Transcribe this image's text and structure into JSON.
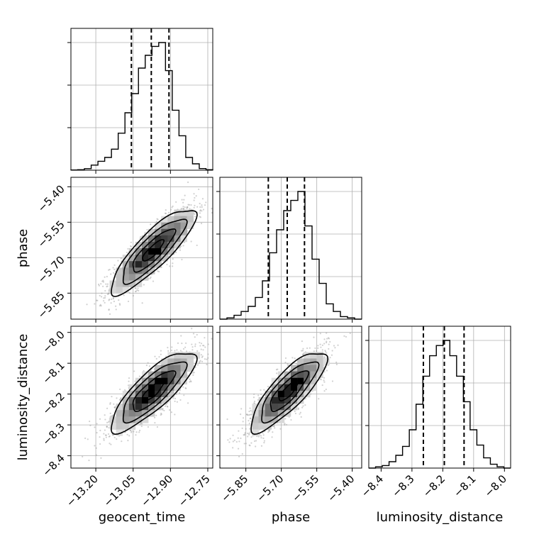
{
  "chart_data": {
    "type": "corner",
    "parameters": [
      {
        "name": "geocent_time",
        "label": "geocent_time",
        "range": [
          -13.3,
          -12.73
        ],
        "ticks": [
          -13.2,
          -13.05,
          -12.9,
          -12.75
        ],
        "tick_labels": [
          "−13.20",
          "−13.05",
          "−12.90",
          "−12.75"
        ],
        "quantiles": [
          -13.057,
          -12.977,
          -12.906
        ],
        "histogram": [
          0.002,
          0.004,
          0.012,
          0.04,
          0.07,
          0.1,
          0.165,
          0.29,
          0.45,
          0.6,
          0.8,
          0.9,
          0.97,
          1.0,
          0.78,
          0.47,
          0.27,
          0.1,
          0.05,
          0.013,
          0.004
        ]
      },
      {
        "name": "phase",
        "label": "phase",
        "range": [
          -5.96,
          -5.36
        ],
        "ticks": [
          -5.85,
          -5.7,
          -5.55,
          -5.4
        ],
        "tick_labels": [
          "−5.85",
          "−5.70",
          "−5.55",
          "−5.40"
        ],
        "quantiles": [
          -5.755,
          -5.675,
          -5.602
        ],
        "histogram": [
          0.0,
          0.01,
          0.03,
          0.06,
          0.1,
          0.17,
          0.3,
          0.52,
          0.7,
          0.85,
          0.93,
          1.0,
          0.73,
          0.47,
          0.28,
          0.12,
          0.06,
          0.02,
          0.01,
          0.0
        ]
      },
      {
        "name": "luminosity_distance",
        "label": "luminosity_distance",
        "range": [
          -8.44,
          -7.98
        ],
        "ticks": [
          -8.4,
          -8.3,
          -8.2,
          -8.1,
          -8.0
        ],
        "tick_labels": [
          "−8.4",
          "−8.3",
          "−8.2",
          "−8.1",
          "−8.0"
        ],
        "quantiles": [
          -8.263,
          -8.195,
          -8.131
        ],
        "histogram": [
          0.0,
          0.01,
          0.02,
          0.05,
          0.1,
          0.17,
          0.3,
          0.5,
          0.72,
          0.88,
          0.96,
          1.0,
          0.88,
          0.72,
          0.52,
          0.3,
          0.18,
          0.08,
          0.03,
          0.01,
          0.0
        ]
      }
    ],
    "pairs": [
      {
        "x": "geocent_time",
        "y": "phase",
        "center": [
          -12.97,
          -5.67
        ],
        "sd": [
          0.085,
          0.09
        ],
        "rho": 0.85
      },
      {
        "x": "geocent_time",
        "y": "luminosity_distance",
        "center": [
          -12.97,
          -8.19
        ],
        "sd": [
          0.085,
          0.065
        ],
        "rho": 0.82
      },
      {
        "x": "phase",
        "y": "luminosity_distance",
        "center": [
          -5.67,
          -8.19
        ],
        "sd": [
          0.08,
          0.065
        ],
        "rho": 0.82
      }
    ],
    "contour_levels_sigma": [
      0.5,
      1.0,
      1.5,
      2.0
    ],
    "grid": true,
    "quantile_line_style": "dashed"
  }
}
